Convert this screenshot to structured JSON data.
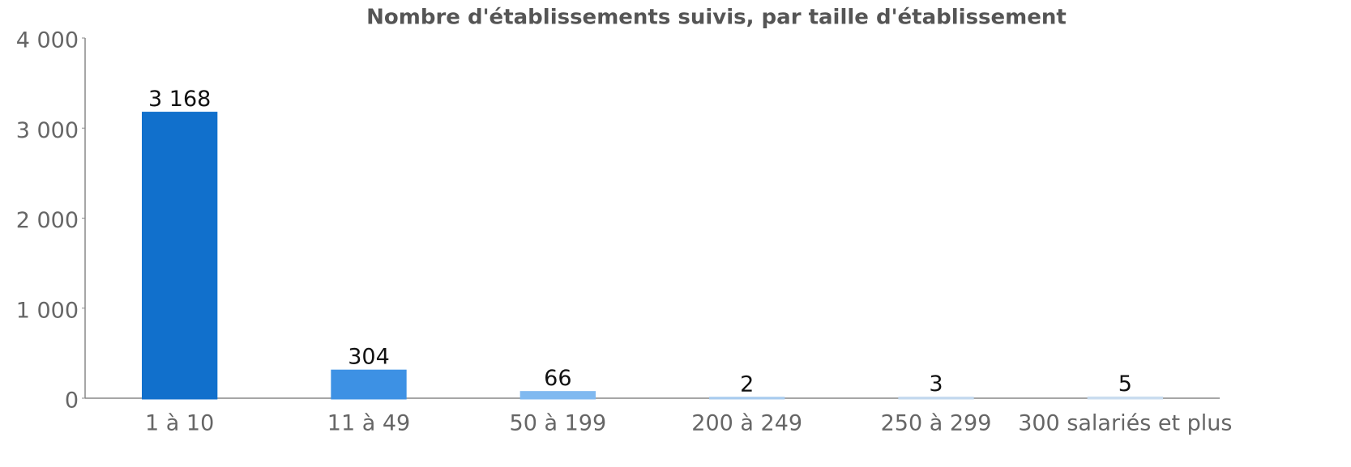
{
  "chart_data": {
    "type": "bar",
    "title": "Nombre d'établissements suivis, par taille d'établissement",
    "categories": [
      "1 à 10",
      "11 à 49",
      "50 à 199",
      "200 à 249",
      "250 à 299",
      "300 salariés et plus"
    ],
    "values": [
      3168,
      304,
      66,
      2,
      3,
      5
    ],
    "value_labels": [
      "3 168",
      "304",
      "66",
      "2",
      "3",
      "5"
    ],
    "colors": [
      "#1170cc",
      "#3d91e4",
      "#80b9f0",
      "#a8cbee",
      "#c3d8ee",
      "#c9dcef"
    ],
    "ylim": [
      0,
      4000
    ],
    "yticks": [
      0,
      {
        "value": 1000,
        "label": "1 000"
      },
      {
        "value": 2000,
        "label": "2 000"
      },
      {
        "value": 3000,
        "label": "3 000"
      },
      {
        "value": 4000,
        "label": "4 000"
      }
    ],
    "grid": false
  }
}
